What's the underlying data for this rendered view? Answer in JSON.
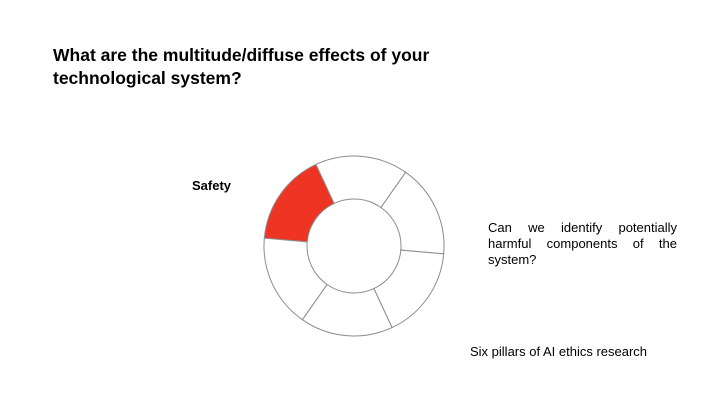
{
  "slide": {
    "title": "What are the multitude/diffuse effects of your technological system?",
    "active_segment_label": "Safety",
    "question": "Can we identify potentially harmful components of the system?",
    "caption": "Six pillars of AI ethics research"
  },
  "wheel": {
    "segment_count": 6,
    "active_segment": 0,
    "active_color": "#ee3524",
    "inactive_color": "#ffffff",
    "stroke_color": "#8c8c8c"
  }
}
